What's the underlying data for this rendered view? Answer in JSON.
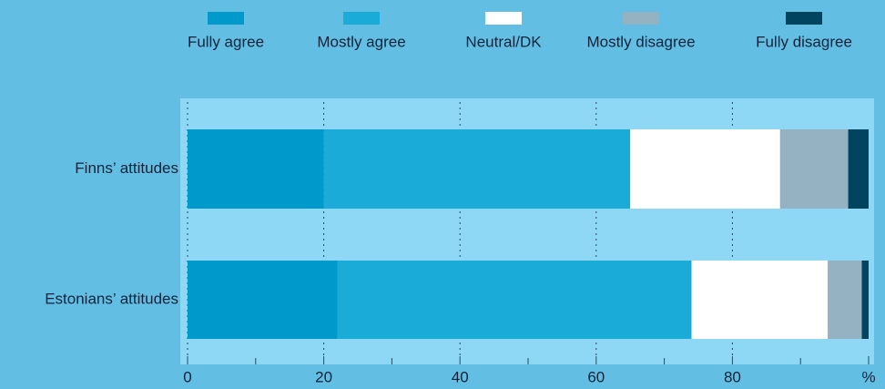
{
  "chart_data": {
    "type": "stacked-bar-horizontal",
    "categories": [
      "Finns’ attitudes",
      "Estonians’ attitudes"
    ],
    "series": [
      {
        "name": "Fully agree",
        "color": "#0099cc",
        "values": [
          20,
          22
        ]
      },
      {
        "name": "Mostly agree",
        "color": "#1babd9",
        "values": [
          45,
          52
        ]
      },
      {
        "name": "Neutral/DK",
        "color": "#ffffff",
        "values": [
          22,
          20
        ]
      },
      {
        "name": "Mostly disagree",
        "color": "#94b2c1",
        "values": [
          10,
          5
        ]
      },
      {
        "name": "Fully disagree",
        "color": "#00445f",
        "values": [
          3,
          1
        ]
      }
    ],
    "xlim": [
      0,
      100
    ],
    "xticks": [
      0,
      20,
      40,
      60,
      80,
      {
        "value": 100,
        "label": "%"
      }
    ],
    "xminorticks": [
      10,
      30,
      50,
      70,
      90
    ],
    "grid": true,
    "legend": "top"
  }
}
